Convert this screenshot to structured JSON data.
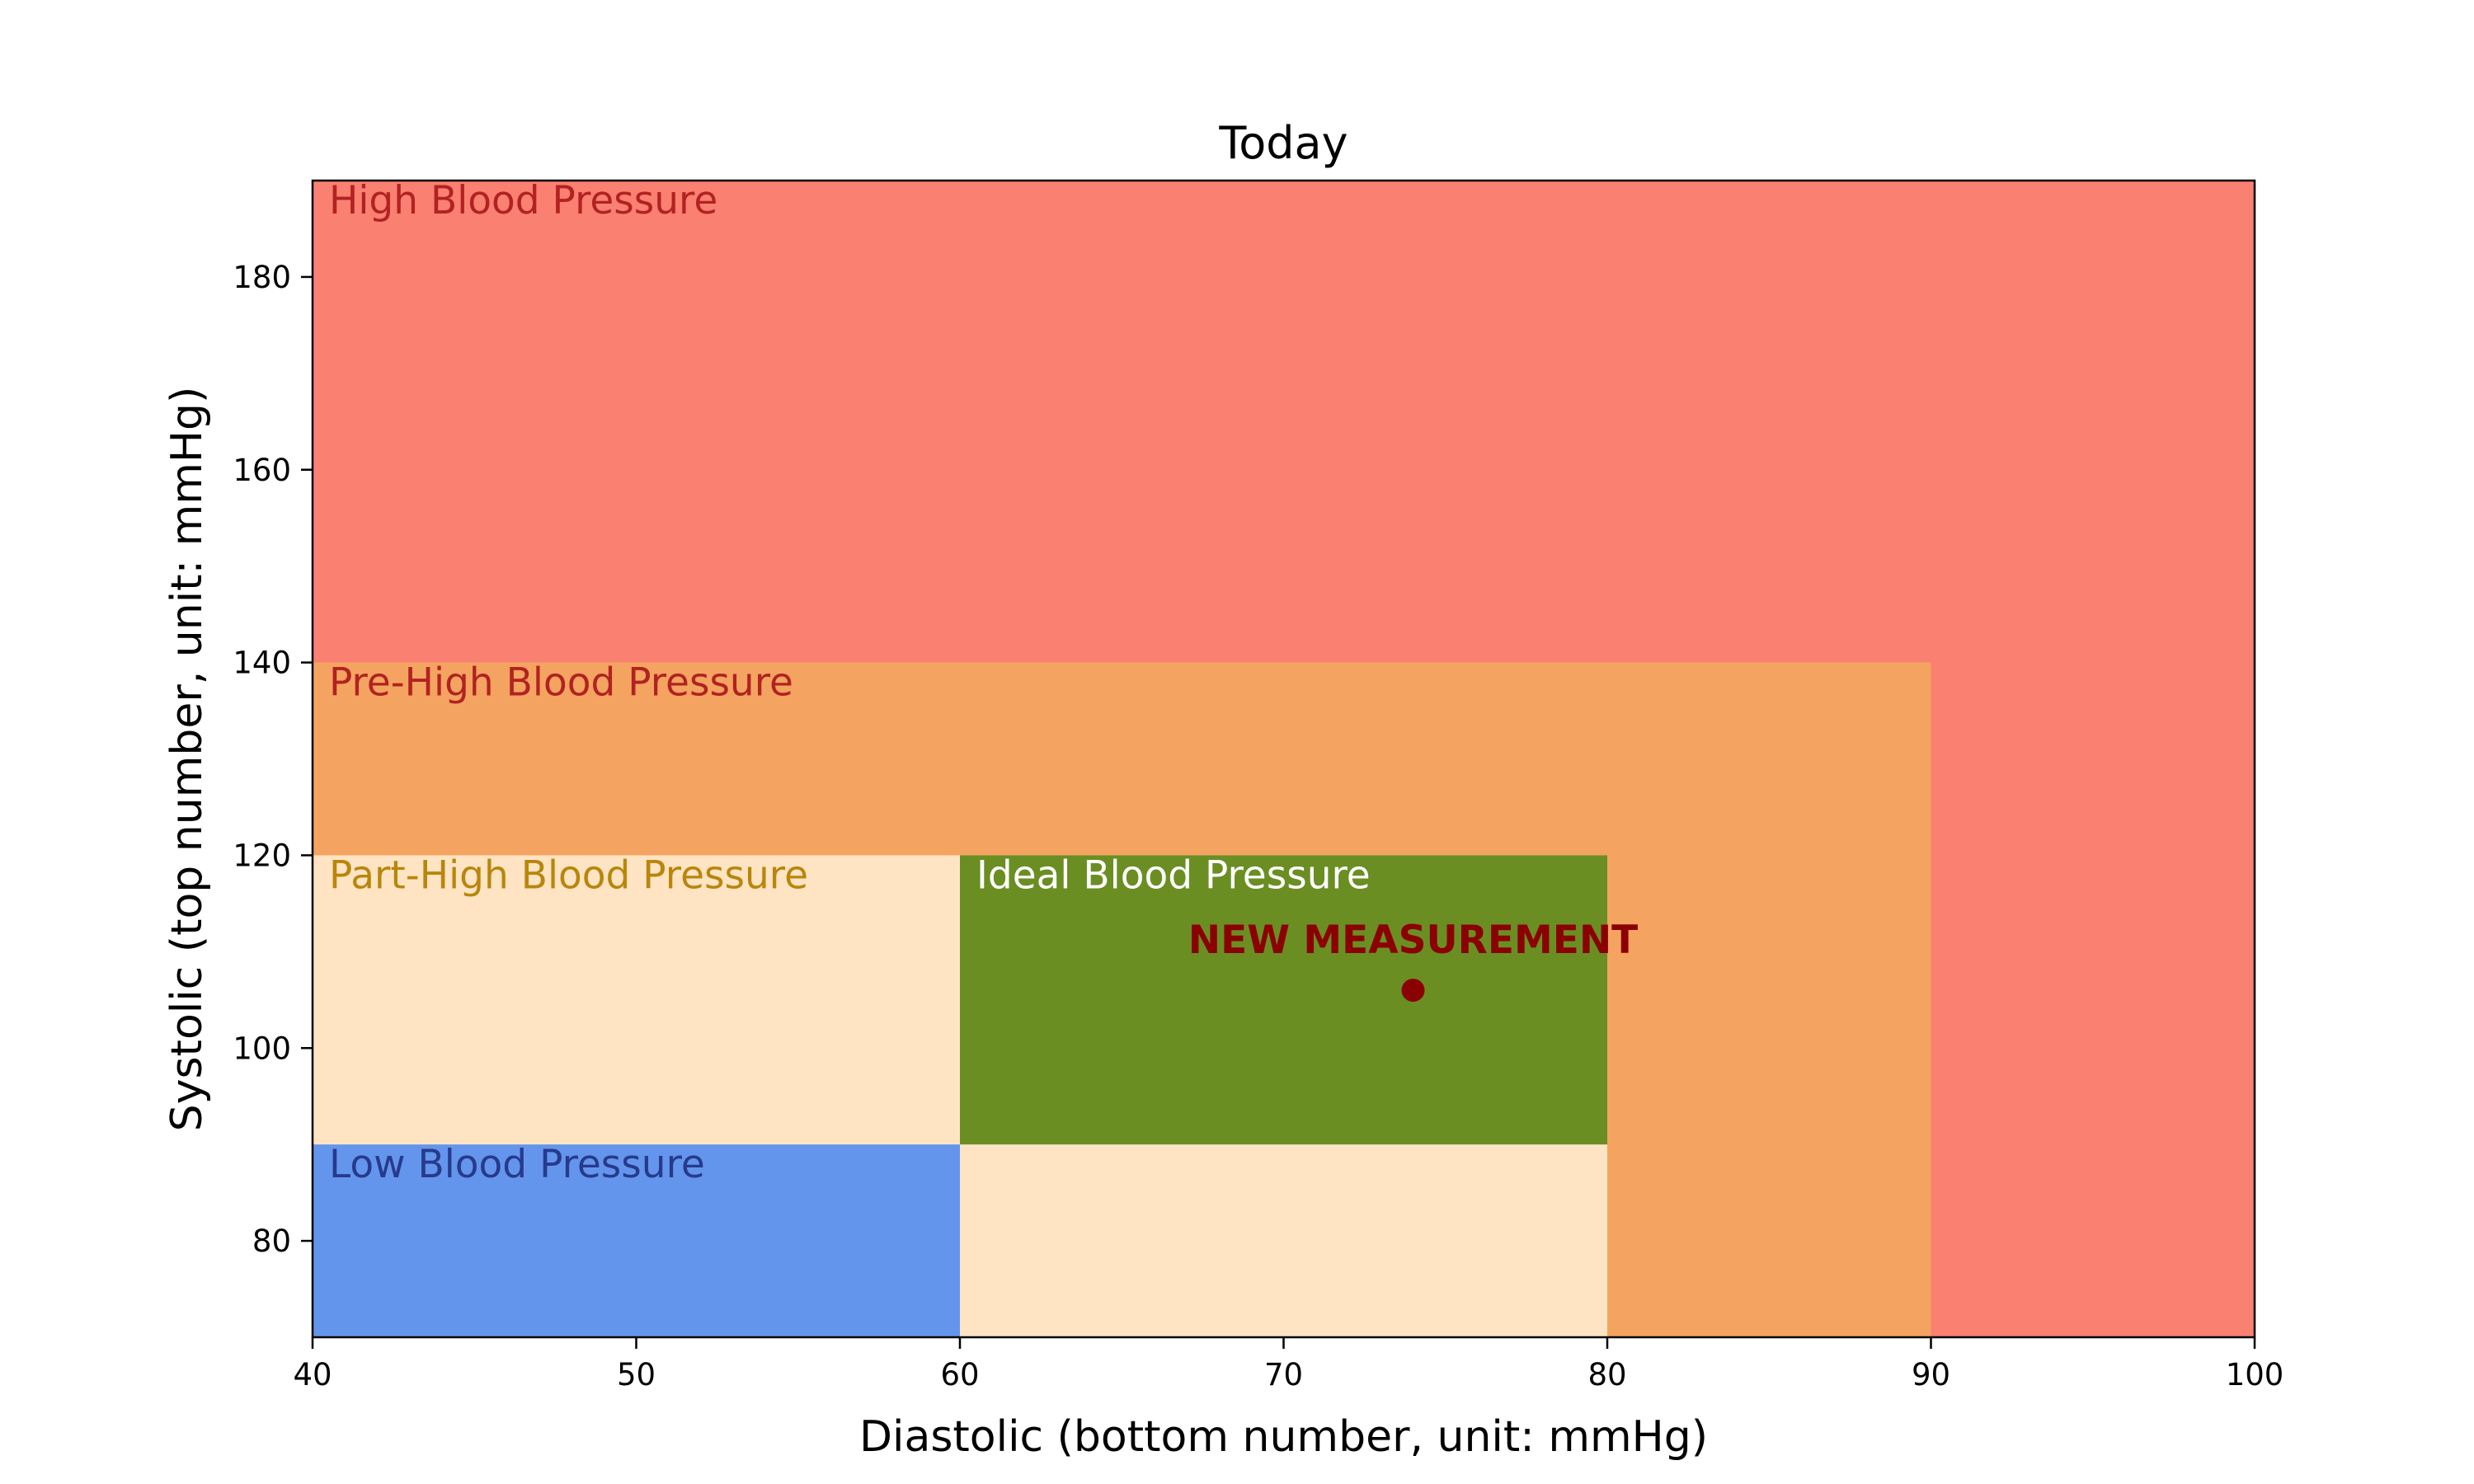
{
  "chart_data": {
    "type": "scatter",
    "title": "Today",
    "xlabel": "Diastolic (bottom number, unit: mmHg)",
    "ylabel": "Systolic (top number, unit: mmHg)",
    "xlim": [
      40,
      100
    ],
    "ylim": [
      70,
      190
    ],
    "xticks": [
      40,
      50,
      60,
      70,
      80,
      90,
      100
    ],
    "yticks": [
      80,
      100,
      120,
      140,
      160,
      180
    ],
    "grid": false,
    "regions": [
      {
        "name": "High Blood Pressure",
        "x": [
          40,
          100
        ],
        "y": [
          70,
          190
        ],
        "color": "#fa8072",
        "label_color": "#b22222"
      },
      {
        "name": "Pre-High Blood Pressure",
        "x": [
          40,
          90
        ],
        "y": [
          70,
          140
        ],
        "color": "#f4a460",
        "label_color": "#b22222"
      },
      {
        "name": "Part-High Blood Pressure",
        "x": [
          40,
          80
        ],
        "y": [
          70,
          120
        ],
        "color": "#ffe4c4",
        "label_color": "#b8860b"
      },
      {
        "name": "Ideal Blood Pressure",
        "x": [
          60,
          80
        ],
        "y": [
          90,
          120
        ],
        "color": "#6b8e23",
        "label_color": "#ffffff"
      },
      {
        "name": "Low Blood Pressure",
        "x": [
          40,
          60
        ],
        "y": [
          70,
          90
        ],
        "color": "#6495ed",
        "label_color": "#273a8c"
      }
    ],
    "points": [
      {
        "x": 74,
        "y": 106,
        "label": "NEW MEASUREMENT",
        "color": "#8b0000"
      }
    ]
  }
}
